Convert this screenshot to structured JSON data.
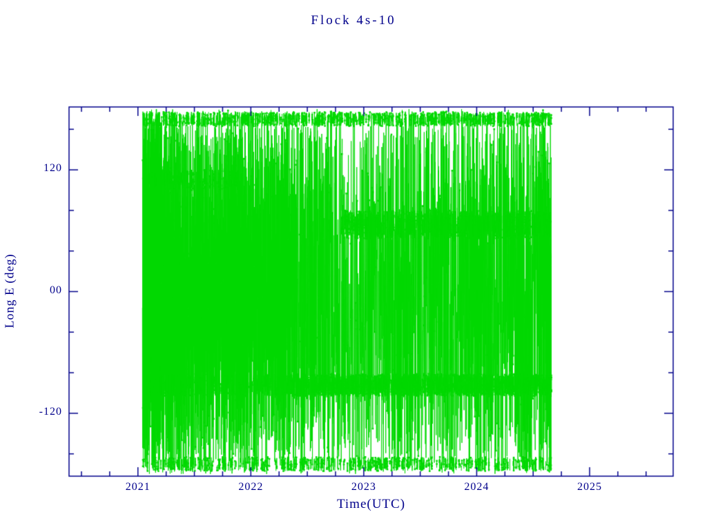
{
  "chart_data": {
    "type": "line",
    "title": "Flock 4s-10",
    "xlabel": "Time(UTC)",
    "ylabel": "Long E (deg)",
    "xlim": [
      2020.39,
      2025.74
    ],
    "ylim": [
      -182,
      182
    ],
    "x_ticks": [
      2021,
      2022,
      2023,
      2024,
      2025
    ],
    "x_tick_labels": [
      "2021",
      "2022",
      "2023",
      "2024",
      "2025"
    ],
    "x_minor_tick_step": 0.25,
    "y_ticks": [
      -120,
      0,
      120
    ],
    "y_tick_labels": [
      "-120",
      "00",
      "120"
    ],
    "y_minor_tick_step": 40,
    "grid": false,
    "legend": "none",
    "colors": {
      "axis": "#00008b",
      "text": "#00008b",
      "data": "#00d800",
      "background": "#ffffff"
    },
    "data_description": "Sub-satellite longitude of Flock 4s-10 wrapping continuously between -180 and +180 deg from early 2021 through mid 2024; rendered as dense vertical green traces with small square markers and denser horizontal dwell bands near -92, +66 and +/-170 deg longitude.",
    "series": [
      {
        "name": "Flock 4s-10 longitude",
        "style": "line-with-square-markers",
        "t_start": 2021.04,
        "t_end": 2024.66,
        "wrap_period_years": 0.00274,
        "base_dt_years": 0.00052,
        "lon0": 10,
        "marker_size_px": 2.5,
        "dense_until": 2022.35,
        "seed": 1337,
        "bands": [
          {
            "lon": -92,
            "halfwidth": 11,
            "t_start": 2021.05,
            "t_end": 2022.35,
            "density": 0.35
          },
          {
            "lon": -92,
            "halfwidth": 11,
            "t_start": 2022.35,
            "t_end": 2024.66,
            "density": 0.85
          },
          {
            "lon": 66,
            "halfwidth": 14,
            "t_start": 2022.8,
            "t_end": 2024.66,
            "density": 0.6
          },
          {
            "lon": 170,
            "halfwidth": 7,
            "t_start": 2021.04,
            "t_end": 2024.66,
            "density": 0.45
          },
          {
            "lon": -170,
            "halfwidth": 7,
            "t_start": 2021.04,
            "t_end": 2024.66,
            "density": 0.3
          },
          {
            "lon": 110,
            "halfwidth": 10,
            "t_start": 2021.1,
            "t_end": 2021.9,
            "density": 0.3
          }
        ]
      }
    ]
  }
}
